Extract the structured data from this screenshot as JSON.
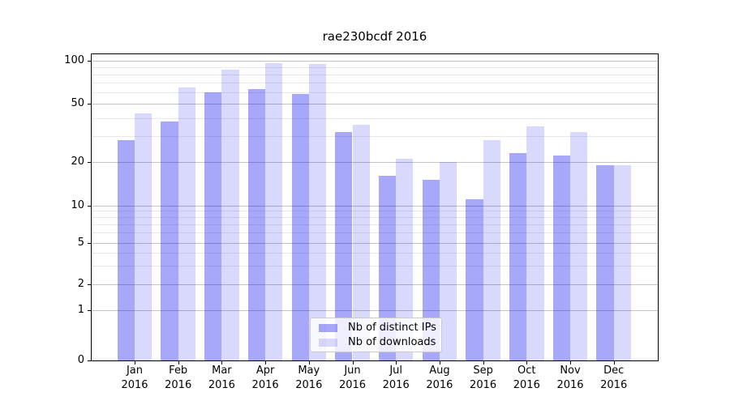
{
  "title": "rae230bcdf 2016",
  "chart_data": {
    "type": "bar",
    "categories": [
      "Jan",
      "Feb",
      "Mar",
      "Apr",
      "May",
      "Jun",
      "Jul",
      "Aug",
      "Sep",
      "Oct",
      "Nov",
      "Dec"
    ],
    "year_label": "2016",
    "series": [
      {
        "name": "Nb of distinct IPs",
        "color": "rgba(0,0,240,0.34)",
        "values": [
          28,
          38,
          60,
          63,
          59,
          32,
          16,
          15,
          11,
          23,
          22,
          19
        ]
      },
      {
        "name": "Nb of downloads",
        "color": "rgba(0,0,240,0.15)",
        "values": [
          43,
          65,
          86,
          95,
          94,
          36,
          21,
          20,
          28,
          35,
          32,
          19
        ]
      }
    ],
    "y_axis": {
      "scale": "log-like",
      "major_ticks": [
        0,
        1,
        2,
        5,
        10,
        20,
        50,
        100
      ],
      "major_tick_labels": [
        "0",
        "1",
        "2",
        "5",
        "10",
        "20",
        "50",
        "100"
      ],
      "minor_ticks": [
        3,
        4,
        6,
        7,
        8,
        9,
        30,
        40,
        60,
        70,
        80,
        90
      ],
      "range": [
        0,
        110
      ]
    },
    "grid": true,
    "legend_position": "inside-bottom-center"
  },
  "colors": {
    "grid_major": "#c4c4c4",
    "grid_minor": "#e9e9e9",
    "axis": "#000000",
    "text": "#000000",
    "legend_bg": "rgba(255,255,255,0.8)",
    "legend_border": "#cbcbcb"
  }
}
